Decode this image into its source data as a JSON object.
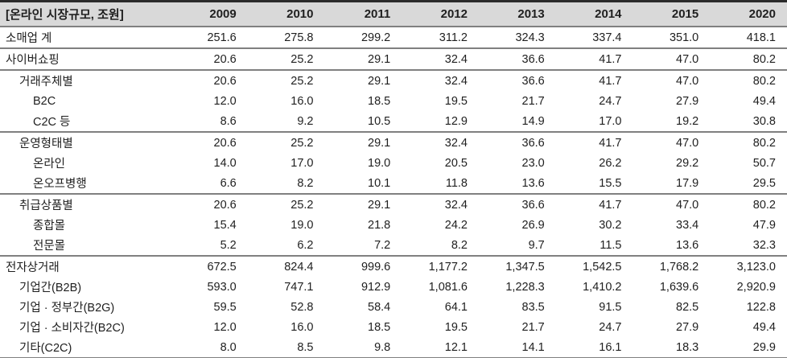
{
  "table": {
    "title": "[온라인 시장규모, 조원]",
    "years": [
      "2009",
      "2010",
      "2011",
      "2012",
      "2013",
      "2014",
      "2015",
      "2020"
    ],
    "rows": [
      {
        "label": "소매업 계",
        "indent": 0,
        "separator_below": true,
        "values": [
          "251.6",
          "275.8",
          "299.2",
          "311.2",
          "324.3",
          "337.4",
          "351.0",
          "418.1"
        ]
      },
      {
        "label": "사이버쇼핑",
        "indent": 0,
        "separator_below": true,
        "values": [
          "20.6",
          "25.2",
          "29.1",
          "32.4",
          "36.6",
          "41.7",
          "47.0",
          "80.2"
        ]
      },
      {
        "label": "거래주체별",
        "indent": 1,
        "separator_below": false,
        "values": [
          "20.6",
          "25.2",
          "29.1",
          "32.4",
          "36.6",
          "41.7",
          "47.0",
          "80.2"
        ]
      },
      {
        "label": "B2C",
        "indent": 2,
        "separator_below": false,
        "values": [
          "12.0",
          "16.0",
          "18.5",
          "19.5",
          "21.7",
          "24.7",
          "27.9",
          "49.4"
        ]
      },
      {
        "label": "C2C 등",
        "indent": 2,
        "separator_below": true,
        "values": [
          "8.6",
          "9.2",
          "10.5",
          "12.9",
          "14.9",
          "17.0",
          "19.2",
          "30.8"
        ]
      },
      {
        "label": "운영형태별",
        "indent": 1,
        "separator_below": false,
        "values": [
          "20.6",
          "25.2",
          "29.1",
          "32.4",
          "36.6",
          "41.7",
          "47.0",
          "80.2"
        ]
      },
      {
        "label": "온라인",
        "indent": 2,
        "separator_below": false,
        "values": [
          "14.0",
          "17.0",
          "19.0",
          "20.5",
          "23.0",
          "26.2",
          "29.2",
          "50.7"
        ]
      },
      {
        "label": "온오프병행",
        "indent": 2,
        "separator_below": true,
        "values": [
          "6.6",
          "8.2",
          "10.1",
          "11.8",
          "13.6",
          "15.5",
          "17.9",
          "29.5"
        ]
      },
      {
        "label": "취급상품별",
        "indent": 1,
        "separator_below": false,
        "values": [
          "20.6",
          "25.2",
          "29.1",
          "32.4",
          "36.6",
          "41.7",
          "47.0",
          "80.2"
        ]
      },
      {
        "label": "종합몰",
        "indent": 2,
        "separator_below": false,
        "values": [
          "15.4",
          "19.0",
          "21.8",
          "24.2",
          "26.9",
          "30.2",
          "33.4",
          "47.9"
        ]
      },
      {
        "label": "전문몰",
        "indent": 2,
        "separator_below": true,
        "values": [
          "5.2",
          "6.2",
          "7.2",
          "8.2",
          "9.7",
          "11.5",
          "13.6",
          "32.3"
        ]
      },
      {
        "label": "전자상거래",
        "indent": 0,
        "separator_below": false,
        "values": [
          "672.5",
          "824.4",
          "999.6",
          "1,177.2",
          "1,347.5",
          "1,542.5",
          "1,768.2",
          "3,123.0"
        ]
      },
      {
        "label": "기업간(B2B)",
        "indent": 1,
        "separator_below": false,
        "values": [
          "593.0",
          "747.1",
          "912.9",
          "1,081.6",
          "1,228.3",
          "1,410.2",
          "1,639.6",
          "2,920.9"
        ]
      },
      {
        "label": "기업 · 정부간(B2G)",
        "indent": 1,
        "separator_below": false,
        "values": [
          "59.5",
          "52.8",
          "58.4",
          "64.1",
          "83.5",
          "91.5",
          "82.5",
          "122.8"
        ]
      },
      {
        "label": "기업 · 소비자간(B2C)",
        "indent": 1,
        "separator_below": false,
        "values": [
          "12.0",
          "16.0",
          "18.5",
          "19.5",
          "21.7",
          "24.7",
          "27.9",
          "49.4"
        ]
      },
      {
        "label": "기타(C2C)",
        "indent": 1,
        "separator_below": false,
        "values": [
          "8.0",
          "8.5",
          "9.8",
          "12.1",
          "14.1",
          "16.1",
          "18.3",
          "29.9"
        ]
      }
    ],
    "colors": {
      "header_bg": "#d9d9d9",
      "border_top": "#2b2b2b",
      "separator": "#808080",
      "text": "#1f1f1f"
    }
  }
}
